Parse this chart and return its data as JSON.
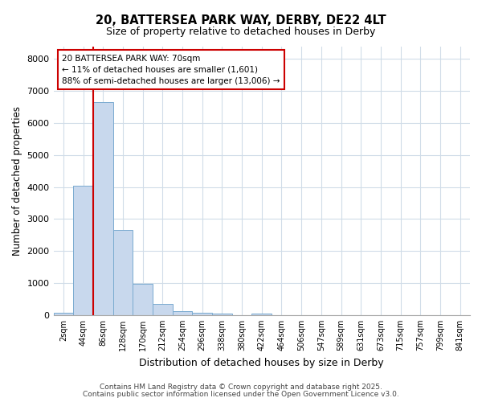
{
  "title1": "20, BATTERSEA PARK WAY, DERBY, DE22 4LT",
  "title2": "Size of property relative to detached houses in Derby",
  "xlabel": "Distribution of detached houses by size in Derby",
  "ylabel": "Number of detached properties",
  "categories": [
    "2sqm",
    "44sqm",
    "86sqm",
    "128sqm",
    "170sqm",
    "212sqm",
    "254sqm",
    "296sqm",
    "338sqm",
    "380sqm",
    "422sqm",
    "464sqm",
    "506sqm",
    "547sqm",
    "589sqm",
    "631sqm",
    "673sqm",
    "715sqm",
    "757sqm",
    "799sqm",
    "841sqm"
  ],
  "values": [
    80,
    4050,
    6650,
    2650,
    980,
    340,
    130,
    75,
    50,
    0,
    55,
    0,
    0,
    0,
    0,
    0,
    0,
    0,
    0,
    0,
    0
  ],
  "bar_color": "#c8d8ed",
  "bar_edge_color": "#7aabd0",
  "vline_x": 1.5,
  "vline_color": "#cc0000",
  "legend_title": "20 BATTERSEA PARK WAY: 70sqm",
  "legend_line1": "← 11% of detached houses are smaller (1,601)",
  "legend_line2": "88% of semi-detached houses are larger (13,006) →",
  "legend_box_color": "#cc0000",
  "ylim": [
    0,
    8400
  ],
  "yticks": [
    0,
    1000,
    2000,
    3000,
    4000,
    5000,
    6000,
    7000,
    8000
  ],
  "bg_color": "#ffffff",
  "grid_color": "#d0dce8",
  "footnote1": "Contains HM Land Registry data © Crown copyright and database right 2025.",
  "footnote2": "Contains public sector information licensed under the Open Government Licence v3.0."
}
